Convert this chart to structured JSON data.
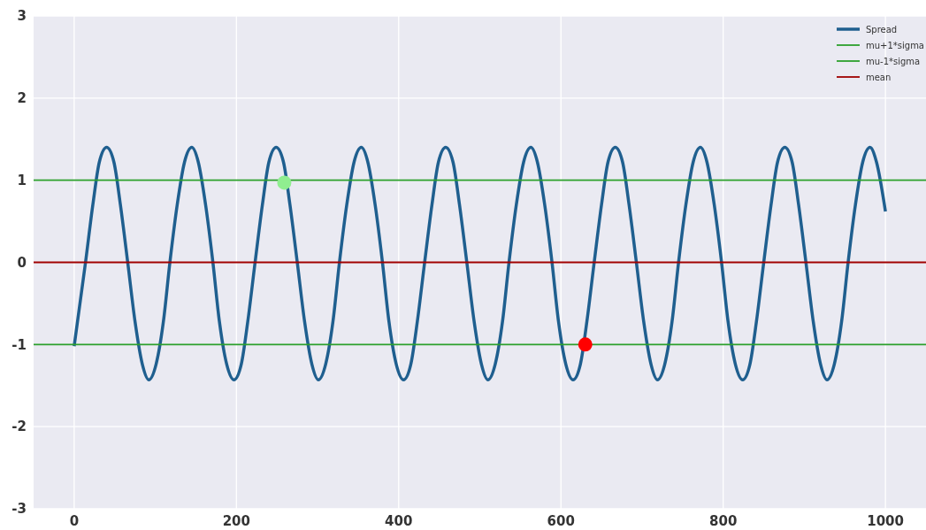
{
  "chart_data": {
    "type": "line",
    "xlim": [
      -50,
      1050
    ],
    "xticks": [
      0,
      200,
      400,
      600,
      800,
      1000
    ],
    "ylim": [
      -3,
      3
    ],
    "yticks": [
      -3,
      -2,
      -1,
      0,
      1,
      2,
      3
    ],
    "grid": true,
    "legend": "top right",
    "series": [
      {
        "name": "Spread",
        "color": "#1f5f8f",
        "x": [
          0,
          14,
          23,
          31,
          40,
          49,
          57,
          66,
          75,
          84,
          92,
          101,
          110,
          118,
          127,
          136,
          145,
          153,
          162,
          171,
          179,
          188,
          197,
          206,
          214,
          223,
          232,
          240,
          249,
          258,
          266,
          275,
          284,
          293,
          301,
          310,
          319,
          327,
          336,
          345,
          354,
          362,
          371,
          380,
          388,
          397,
          406,
          415,
          423,
          432,
          441,
          449,
          458,
          467,
          475,
          484,
          493,
          502,
          510,
          519,
          528,
          536,
          545,
          554,
          563,
          571,
          580,
          589,
          597,
          606,
          615,
          624,
          632,
          641,
          650,
          658,
          667,
          676,
          684,
          693,
          702,
          711,
          719,
          728,
          737,
          745,
          754,
          763,
          772,
          780,
          789,
          798,
          806,
          815,
          824,
          833,
          841,
          850,
          859,
          867,
          876,
          885,
          893,
          902,
          911,
          920,
          928,
          937,
          946,
          954,
          963,
          972,
          981,
          989,
          1000
        ],
        "values": [
          -1.02,
          0,
          0.7,
          1.22,
          1.4,
          1.22,
          0.7,
          0,
          -0.72,
          -1.24,
          -1.43,
          -1.24,
          -0.72,
          0,
          0.7,
          1.22,
          1.4,
          1.22,
          0.7,
          0,
          -0.72,
          -1.24,
          -1.43,
          -1.24,
          -0.72,
          0,
          0.7,
          1.22,
          1.4,
          1.22,
          0.7,
          0,
          -0.72,
          -1.24,
          -1.43,
          -1.24,
          -0.72,
          0,
          0.7,
          1.22,
          1.4,
          1.22,
          0.7,
          0,
          -0.72,
          -1.24,
          -1.43,
          -1.24,
          -0.72,
          0,
          0.7,
          1.22,
          1.4,
          1.22,
          0.7,
          0,
          -0.72,
          -1.24,
          -1.43,
          -1.24,
          -0.72,
          0,
          0.7,
          1.22,
          1.4,
          1.22,
          0.7,
          0,
          -0.72,
          -1.24,
          -1.43,
          -1.24,
          -0.72,
          0,
          0.7,
          1.22,
          1.4,
          1.22,
          0.7,
          0,
          -0.72,
          -1.24,
          -1.43,
          -1.24,
          -0.72,
          0,
          0.7,
          1.22,
          1.4,
          1.22,
          0.7,
          0,
          -0.72,
          -1.24,
          -1.43,
          -1.24,
          -0.72,
          0,
          0.7,
          1.22,
          1.4,
          1.22,
          0.7,
          0,
          -0.72,
          -1.24,
          -1.43,
          -1.24,
          -0.72,
          0,
          0.7,
          1.22,
          1.4,
          1.22,
          0.62
        ]
      },
      {
        "name": "mu+1*sigma",
        "color": "#2ca02c",
        "x": [
          -50,
          1050
        ],
        "values": [
          1,
          1
        ]
      },
      {
        "name": "mu-1*sigma",
        "color": "#2ca02c",
        "x": [
          -50,
          1050
        ],
        "values": [
          -1,
          -1
        ]
      },
      {
        "name": "mean",
        "color": "#a00000",
        "x": [
          -50,
          1050
        ],
        "values": [
          0,
          0
        ]
      },
      {
        "type": "scatter",
        "color": "#90ee90",
        "x": [
          259
        ],
        "values": [
          0.97
        ]
      },
      {
        "type": "scatter",
        "color": "#ff0000",
        "x": [
          630
        ],
        "values": [
          -1
        ]
      }
    ]
  }
}
